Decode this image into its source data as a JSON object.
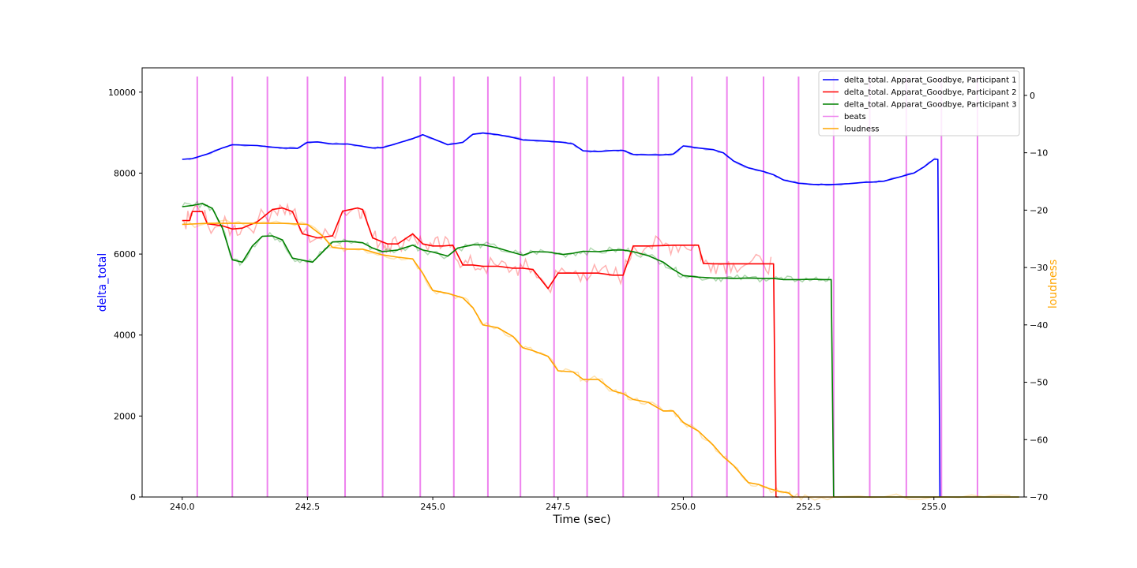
{
  "chart_data": {
    "type": "line",
    "xlabel": "Time (sec)",
    "ylabel_left": "delta_total",
    "ylabel_right": "loudness",
    "xlim": [
      239.2,
      256.8
    ],
    "ylim_left": [
      0,
      10600
    ],
    "ylim_right": [
      -70,
      4.8
    ],
    "xticks": [
      240.0,
      242.5,
      245.0,
      247.5,
      250.0,
      252.5,
      255.0
    ],
    "xtick_labels": [
      "240.0",
      "242.5",
      "245.0",
      "247.5",
      "250.0",
      "252.5",
      "255.0"
    ],
    "yticks_left": [
      0,
      2000,
      4000,
      6000,
      8000,
      10000
    ],
    "ytick_labels_left": [
      "0",
      "2000",
      "4000",
      "6000",
      "8000",
      "10000"
    ],
    "yticks_right": [
      -70,
      -60,
      -50,
      -40,
      -30,
      -20,
      -10,
      0
    ],
    "ytick_labels_right": [
      "−70",
      "−60",
      "−50",
      "−40",
      "−30",
      "−20",
      "−10",
      "0"
    ],
    "legend_position": "top-right",
    "grid": false,
    "colors": {
      "participant1": "#0000ff",
      "participant2": "#ff0000",
      "participant3": "#008000",
      "beats": "#ee82ee",
      "loudness": "#ffa500",
      "ylabel_left": "#0000ff",
      "ylabel_right": "#ffa500"
    },
    "beats": [
      240.3,
      241.0,
      241.7,
      242.5,
      243.25,
      244.0,
      244.75,
      245.42,
      246.1,
      246.75,
      247.42,
      248.08,
      248.8,
      249.5,
      250.17,
      250.87,
      251.6,
      252.3,
      253.0,
      253.72,
      254.45,
      255.15,
      255.87
    ],
    "series": [
      {
        "name": "delta_total. Apparat_Goodbye, Participant 1",
        "axis": "left",
        "color": "#0000ff",
        "x": [
          240.0,
          240.2,
          240.5,
          240.8,
          241.0,
          241.5,
          241.8,
          242.0,
          242.3,
          242.5,
          242.7,
          243.0,
          243.3,
          243.5,
          243.8,
          244.0,
          244.3,
          244.6,
          244.8,
          245.0,
          245.3,
          245.6,
          245.8,
          246.0,
          246.3,
          246.6,
          246.8,
          247.0,
          247.3,
          247.6,
          247.8,
          248.0,
          248.3,
          248.6,
          248.8,
          249.0,
          249.3,
          249.6,
          249.8,
          250.0,
          250.3,
          250.6,
          250.8,
          251.0,
          251.3,
          251.6,
          251.8,
          252.0,
          252.3,
          252.6,
          252.8,
          253.0,
          253.3,
          253.6,
          253.8,
          254.0,
          254.3,
          254.6,
          254.8,
          255.0,
          255.08,
          255.12
        ],
        "y": [
          8340,
          8360,
          8470,
          8620,
          8700,
          8680,
          8640,
          8620,
          8610,
          8760,
          8770,
          8720,
          8720,
          8680,
          8620,
          8630,
          8740,
          8850,
          8950,
          8850,
          8700,
          8760,
          8960,
          8990,
          8950,
          8880,
          8820,
          8810,
          8790,
          8760,
          8720,
          8550,
          8530,
          8560,
          8560,
          8460,
          8450,
          8450,
          8470,
          8670,
          8620,
          8580,
          8500,
          8300,
          8130,
          8040,
          7960,
          7830,
          7750,
          7720,
          7720,
          7720,
          7740,
          7770,
          7780,
          7800,
          7900,
          8000,
          8150,
          8340,
          8340,
          0
        ]
      },
      {
        "name": "delta_total. Apparat_Goodbye, Participant 2",
        "axis": "left",
        "color": "#ff0000",
        "x": [
          240.0,
          240.15,
          240.2,
          240.4,
          240.5,
          240.8,
          241.0,
          241.2,
          241.5,
          241.8,
          242.0,
          242.2,
          242.4,
          242.7,
          243.0,
          243.2,
          243.5,
          243.6,
          243.8,
          244.0,
          244.1,
          244.3,
          244.6,
          244.8,
          245.0,
          245.2,
          245.4,
          245.6,
          245.8,
          246.0,
          246.3,
          246.6,
          246.8,
          247.0,
          247.3,
          247.5,
          247.8,
          248.0,
          248.3,
          248.6,
          248.8,
          249.0,
          249.3,
          249.6,
          249.8,
          250.0,
          250.3,
          250.4,
          250.6,
          250.8,
          251.0,
          251.3,
          251.6,
          251.8,
          251.85,
          251.9
        ],
        "y": [
          6830,
          6830,
          7050,
          7050,
          6750,
          6700,
          6620,
          6640,
          6800,
          7100,
          7140,
          7050,
          6500,
          6400,
          6450,
          7060,
          7140,
          7100,
          6400,
          6300,
          6250,
          6250,
          6500,
          6250,
          6200,
          6200,
          6220,
          5730,
          5730,
          5700,
          5700,
          5650,
          5650,
          5620,
          5150,
          5530,
          5530,
          5530,
          5530,
          5480,
          5480,
          6200,
          6200,
          6210,
          6220,
          6220,
          6220,
          5770,
          5760,
          5760,
          5760,
          5760,
          5760,
          5760,
          0,
          0
        ]
      },
      {
        "name": "delta_total. Apparat_Goodbye, Participant 3",
        "axis": "left",
        "color": "#008000",
        "x": [
          240.0,
          240.2,
          240.4,
          240.6,
          240.8,
          241.0,
          241.2,
          241.4,
          241.6,
          241.8,
          242.0,
          242.2,
          242.4,
          242.6,
          242.8,
          243.0,
          243.3,
          243.6,
          243.8,
          244.0,
          244.3,
          244.6,
          244.8,
          245.0,
          245.3,
          245.5,
          245.8,
          246.0,
          246.3,
          246.6,
          246.8,
          247.0,
          247.3,
          247.6,
          247.8,
          248.0,
          248.3,
          248.6,
          248.8,
          249.0,
          249.3,
          249.6,
          249.8,
          250.0,
          250.3,
          250.6,
          250.8,
          251.0,
          251.3,
          251.6,
          251.8,
          252.0,
          252.3,
          252.6,
          252.8,
          252.95,
          253.0,
          254.0,
          255.0,
          256.0,
          256.7
        ],
        "y": [
          7170,
          7200,
          7250,
          7130,
          6650,
          5860,
          5800,
          6200,
          6440,
          6450,
          6350,
          5900,
          5850,
          5800,
          6050,
          6300,
          6320,
          6280,
          6150,
          6060,
          6100,
          6220,
          6100,
          6050,
          5950,
          6150,
          6230,
          6230,
          6150,
          6040,
          5970,
          6060,
          6050,
          5990,
          6020,
          6070,
          6060,
          6100,
          6100,
          6060,
          5960,
          5800,
          5620,
          5470,
          5430,
          5410,
          5410,
          5400,
          5410,
          5400,
          5400,
          5370,
          5370,
          5380,
          5370,
          5370,
          0,
          0,
          0,
          0,
          0
        ]
      },
      {
        "name": "loudness",
        "axis": "right",
        "color": "#ffa500",
        "x": [
          240.0,
          240.5,
          241.0,
          241.5,
          242.0,
          242.5,
          242.8,
          243.0,
          243.3,
          243.6,
          244.0,
          244.3,
          244.6,
          244.8,
          245.0,
          245.3,
          245.6,
          245.8,
          246.0,
          246.3,
          246.6,
          246.8,
          247.0,
          247.3,
          247.5,
          247.8,
          248.0,
          248.3,
          248.6,
          248.8,
          249.0,
          249.3,
          249.6,
          249.8,
          250.0,
          250.3,
          250.6,
          250.8,
          251.0,
          251.3,
          251.5,
          251.7,
          251.9,
          252.1,
          252.2,
          252.5,
          253.0,
          254.0,
          255.0,
          256.0,
          256.7
        ],
        "y": [
          -22.5,
          -22.3,
          -22.3,
          -22.3,
          -22.3,
          -22.5,
          -24.5,
          -26.5,
          -26.8,
          -26.8,
          -27.8,
          -28.2,
          -28.5,
          -31.0,
          -34.0,
          -34.5,
          -35.3,
          -37.0,
          -40.0,
          -40.5,
          -42.0,
          -44.0,
          -44.5,
          -45.5,
          -48.0,
          -48.2,
          -49.5,
          -49.5,
          -51.5,
          -52.0,
          -53.0,
          -53.5,
          -55.0,
          -55.0,
          -57.0,
          -58.5,
          -61.0,
          -63.0,
          -64.5,
          -67.5,
          -67.8,
          -68.5,
          -69.0,
          -69.3,
          -70.0,
          -70.0,
          -70.0,
          -70.0,
          -70.0,
          -70.0,
          -70.0
        ]
      }
    ],
    "legend_entries": [
      {
        "label": "delta_total. Apparat_Goodbye, Participant 1",
        "color": "#0000ff"
      },
      {
        "label": "delta_total. Apparat_Goodbye, Participant 2",
        "color": "#ff0000"
      },
      {
        "label": "delta_total. Apparat_Goodbye, Participant 3",
        "color": "#008000"
      },
      {
        "label": "beats",
        "color": "#ee82ee"
      },
      {
        "label": "loudness",
        "color": "#ffa500"
      }
    ]
  }
}
